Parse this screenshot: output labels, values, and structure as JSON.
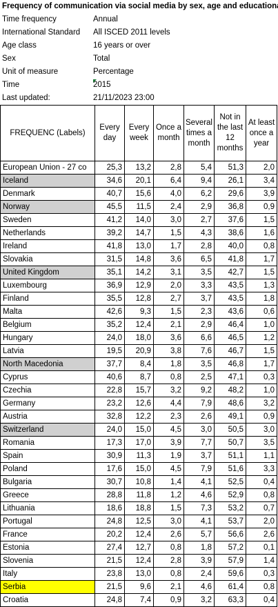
{
  "title": "Frequency of communication via social media by sex, age and educational a",
  "meta": [
    {
      "label": "Time frequency",
      "value": "Annual"
    },
    {
      "label": "International Standard",
      "value": "All ISCED 2011 levels"
    },
    {
      "label": "Age class",
      "value": "16 years or over"
    },
    {
      "label": "Sex",
      "value": "Total"
    },
    {
      "label": "Unit of measure",
      "value": "Percentage"
    },
    {
      "label": "Time",
      "value": "2015"
    },
    {
      "label": "Last updated:",
      "value": "21/11/2023 23:00"
    }
  ],
  "table": {
    "headers": [
      "FREQUENC (Labels)",
      "Every day",
      "Every week",
      "Once a month",
      "Several times a month",
      "Not in the last 12 months",
      "At least once a year"
    ],
    "rows": [
      [
        "European Union - 27 co",
        "25,3",
        "13,2",
        "2,8",
        "5,4",
        "51,3",
        "2,0"
      ],
      [
        "Iceland",
        "34,6",
        "20,1",
        "6,4",
        "9,4",
        "26,1",
        "3,4"
      ],
      [
        "Denmark",
        "40,7",
        "15,6",
        "4,0",
        "6,2",
        "29,6",
        "3,9"
      ],
      [
        "Norway",
        "45,5",
        "11,5",
        "2,4",
        "2,9",
        "36,8",
        "0,9"
      ],
      [
        "Sweden",
        "41,2",
        "14,0",
        "3,0",
        "2,7",
        "37,6",
        "1,5"
      ],
      [
        "Netherlands",
        "39,2",
        "14,7",
        "1,5",
        "4,3",
        "38,6",
        "1,6"
      ],
      [
        "Ireland",
        "41,8",
        "13,0",
        "1,7",
        "2,8",
        "40,0",
        "0,8"
      ],
      [
        "Slovakia",
        "31,5",
        "14,8",
        "3,6",
        "6,5",
        "41,8",
        "1,7"
      ],
      [
        "United Kingdom",
        "35,1",
        "14,2",
        "3,1",
        "3,5",
        "42,7",
        "1,5"
      ],
      [
        "Luxembourg",
        "36,9",
        "12,9",
        "2,0",
        "3,3",
        "43,5",
        "1,3"
      ],
      [
        "Finland",
        "35,5",
        "12,8",
        "2,7",
        "3,7",
        "43,5",
        "1,8"
      ],
      [
        "Malta",
        "42,6",
        "9,3",
        "1,5",
        "2,3",
        "43,6",
        "0,6"
      ],
      [
        "Belgium",
        "35,2",
        "12,4",
        "2,1",
        "2,9",
        "46,4",
        "1,0"
      ],
      [
        "Hungary",
        "24,0",
        "18,0",
        "3,6",
        "6,6",
        "46,5",
        "1,2"
      ],
      [
        "Latvia",
        "19,5",
        "20,9",
        "3,8",
        "7,6",
        "46,7",
        "1,5"
      ],
      [
        "North Macedonia",
        "37,7",
        "8,4",
        "1,8",
        "3,5",
        "46,8",
        "1,7"
      ],
      [
        "Cyprus",
        "40,6",
        "8,7",
        "0,8",
        "2,5",
        "47,1",
        "0,3"
      ],
      [
        "Czechia",
        "22,8",
        "15,7",
        "3,2",
        "9,2",
        "48,2",
        "1,0"
      ],
      [
        "Germany",
        "23,2",
        "12,6",
        "4,4",
        "7,9",
        "48,6",
        "3,2"
      ],
      [
        "Austria",
        "32,8",
        "12,2",
        "2,3",
        "2,6",
        "49,1",
        "0,9"
      ],
      [
        "Switzerland",
        "24,0",
        "15,0",
        "4,5",
        "3,0",
        "50,5",
        "3,0"
      ],
      [
        "Romania",
        "17,3",
        "17,0",
        "3,9",
        "7,7",
        "50,7",
        "3,5"
      ],
      [
        "Spain",
        "30,9",
        "11,3",
        "1,9",
        "3,7",
        "51,1",
        "1,1"
      ],
      [
        "Poland",
        "17,6",
        "15,0",
        "4,5",
        "7,9",
        "51,6",
        "3,3"
      ],
      [
        "Bulgaria",
        "30,7",
        "10,8",
        "1,4",
        "4,1",
        "52,5",
        "0,4"
      ],
      [
        "Greece",
        "28,8",
        "11,8",
        "1,2",
        "4,6",
        "52,9",
        "0,8"
      ],
      [
        "Lithuania",
        "18,6",
        "18,8",
        "1,5",
        "7,3",
        "53,2",
        "0,7"
      ],
      [
        "Portugal",
        "24,8",
        "12,5",
        "3,0",
        "4,1",
        "53,7",
        "2,0"
      ],
      [
        "France",
        "20,2",
        "12,4",
        "2,6",
        "5,7",
        "56,6",
        "2,6"
      ],
      [
        "Estonia",
        "27,4",
        "12,7",
        "0,8",
        "1,8",
        "57,2",
        "0,1"
      ],
      [
        "Slovenia",
        "21,5",
        "12,4",
        "2,8",
        "3,9",
        "57,9",
        "1,4"
      ],
      [
        "Italy",
        "23,8",
        "13,0",
        "0,8",
        "2,4",
        "59,6",
        "0,3"
      ],
      [
        "Serbia",
        "21,5",
        "9,6",
        "2,1",
        "4,6",
        "61,4",
        "0,8"
      ],
      [
        "Croatia",
        "24,8",
        "7,4",
        "0,9",
        "3,2",
        "63,3",
        "0,4"
      ]
    ]
  }
}
